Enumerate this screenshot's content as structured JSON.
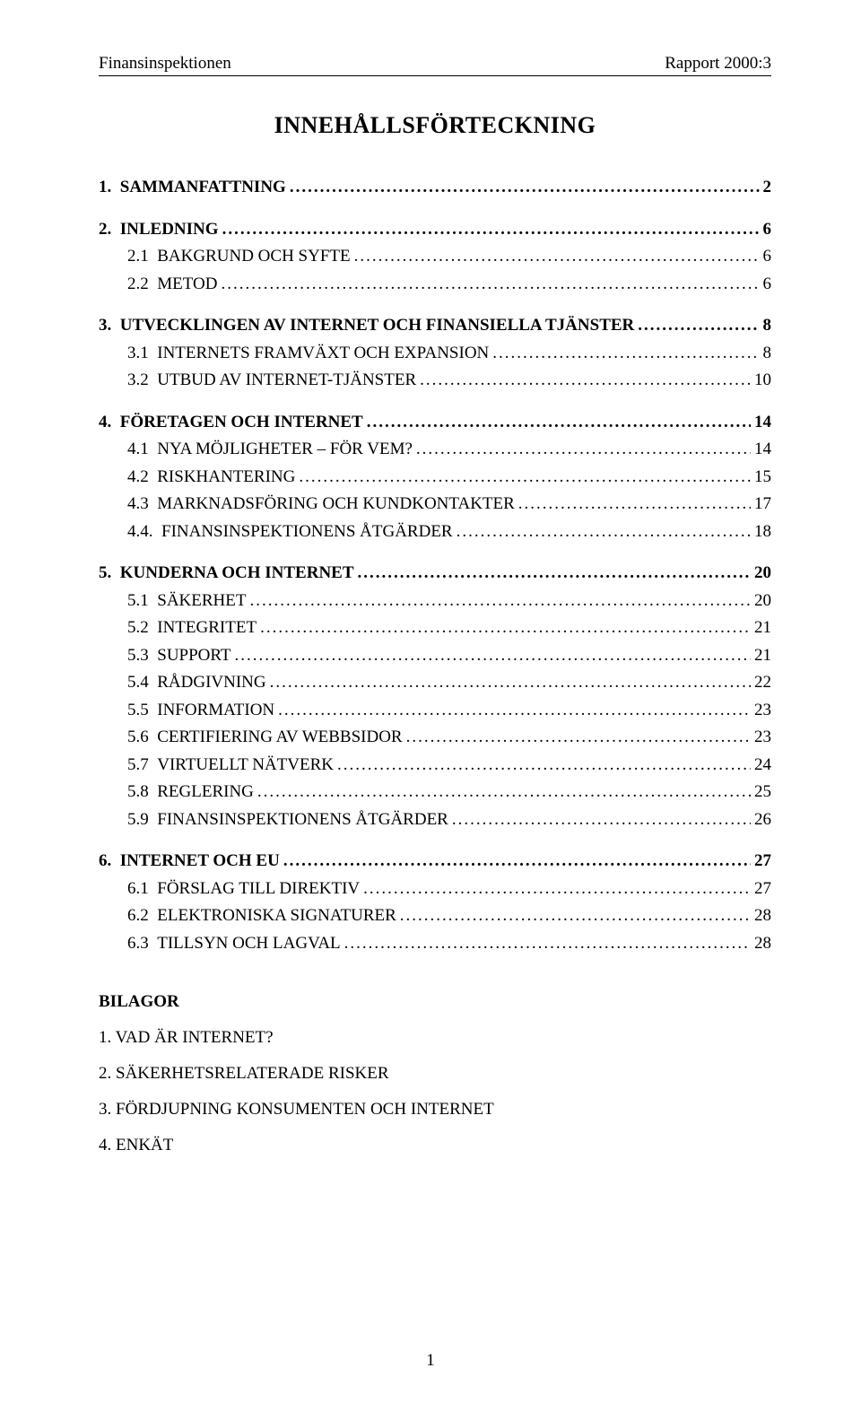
{
  "header": {
    "left": "Finansinspektionen",
    "right": "Rapport 2000:3"
  },
  "title": "INNEHÅLLSFÖRTECKNING",
  "toc": [
    {
      "type": "section",
      "num": "1.",
      "label": "SAMMANFATTNING",
      "page": "2"
    },
    {
      "type": "section",
      "num": "2.",
      "label": "INLEDNING",
      "page": "6"
    },
    {
      "type": "sub",
      "num": "2.1",
      "label": "BAKGRUND OCH SYFTE",
      "page": "6"
    },
    {
      "type": "sub",
      "num": "2.2",
      "label": "METOD",
      "page": "6"
    },
    {
      "type": "section",
      "num": "3.",
      "label": "UTVECKLINGEN AV INTERNET OCH FINANSIELLA TJÄNSTER",
      "page": "8"
    },
    {
      "type": "sub",
      "num": "3.1",
      "label": "INTERNETS FRAMVÄXT OCH EXPANSION",
      "page": "8"
    },
    {
      "type": "sub",
      "num": "3.2",
      "label": "UTBUD AV INTERNET-TJÄNSTER",
      "page": "10"
    },
    {
      "type": "section",
      "num": "4.",
      "label": "FÖRETAGEN OCH INTERNET",
      "page": "14"
    },
    {
      "type": "sub",
      "num": "4.1",
      "label": "NYA MÖJLIGHETER – FÖR VEM?",
      "page": "14"
    },
    {
      "type": "sub",
      "num": "4.2",
      "label": "RISKHANTERING",
      "page": "15"
    },
    {
      "type": "sub",
      "num": "4.3",
      "label": "MARKNADSFÖRING OCH KUNDKONTAKTER",
      "page": "17"
    },
    {
      "type": "sub",
      "num": "4.4.",
      "label": "FINANSINSPEKTIONENS ÅTGÄRDER",
      "page": "18"
    },
    {
      "type": "section",
      "num": "5.",
      "label": "KUNDERNA OCH INTERNET",
      "page": "20"
    },
    {
      "type": "sub",
      "num": "5.1",
      "label": "SÄKERHET",
      "page": "20"
    },
    {
      "type": "sub",
      "num": "5.2",
      "label": "INTEGRITET",
      "page": "21"
    },
    {
      "type": "sub",
      "num": "5.3",
      "label": "SUPPORT",
      "page": "21"
    },
    {
      "type": "sub",
      "num": "5.4",
      "label": "RÅDGIVNING",
      "page": "22"
    },
    {
      "type": "sub",
      "num": "5.5",
      "label": "INFORMATION",
      "page": "23"
    },
    {
      "type": "sub",
      "num": "5.6",
      "label": "CERTIFIERING AV WEBBSIDOR",
      "page": "23"
    },
    {
      "type": "sub",
      "num": "5.7",
      "label": "VIRTUELLT NÄTVERK",
      "page": "24"
    },
    {
      "type": "sub",
      "num": "5.8",
      "label": "REGLERING",
      "page": "25"
    },
    {
      "type": "sub",
      "num": "5.9",
      "label": "FINANSINSPEKTIONENS ÅTGÄRDER",
      "page": "26"
    },
    {
      "type": "section",
      "num": "6.",
      "label": "INTERNET OCH EU",
      "page": "27"
    },
    {
      "type": "sub",
      "num": "6.1",
      "label": "FÖRSLAG TILL DIREKTIV",
      "page": "27"
    },
    {
      "type": "sub",
      "num": "6.2",
      "label": "ELEKTRONISKA SIGNATURER",
      "page": "28"
    },
    {
      "type": "sub",
      "num": "6.3",
      "label": "TILLSYN OCH LAGVAL",
      "page": "28"
    }
  ],
  "bilagor": {
    "title": "BILAGOR",
    "items": [
      "1.  VAD ÄR INTERNET?",
      "2.  SÄKERHETSRELATERADE RISKER",
      "3.  FÖRDJUPNING KONSUMENTEN OCH INTERNET",
      "4.  ENKÄT"
    ]
  },
  "page_number": "1",
  "colors": {
    "text": "#000000",
    "background": "#ffffff"
  },
  "typography": {
    "family": "Times New Roman",
    "body_size_pt": 14,
    "title_size_pt": 20
  }
}
